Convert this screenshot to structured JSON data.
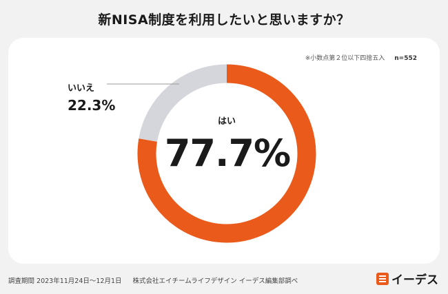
{
  "title": "新NISA制度を利用したいと思いますか？",
  "note": "※小数点第２位以下四捨五入",
  "sample": "n=552",
  "chart_data": {
    "type": "pie",
    "donut": true,
    "slices": [
      {
        "label": "はい",
        "value": 77.7,
        "display": "77.7%",
        "color": "#e95a1b"
      },
      {
        "label": "いいえ",
        "value": 22.3,
        "display": "22.3%",
        "color": "#d4d6db"
      }
    ]
  },
  "footer": {
    "period": "調査期間 2023年11月24日〜12月1日",
    "company": "株式会社エイチームライフデザイン イーデス編集部調べ"
  },
  "logo": {
    "text": "イーデス",
    "icon": "ides-logo-icon"
  }
}
